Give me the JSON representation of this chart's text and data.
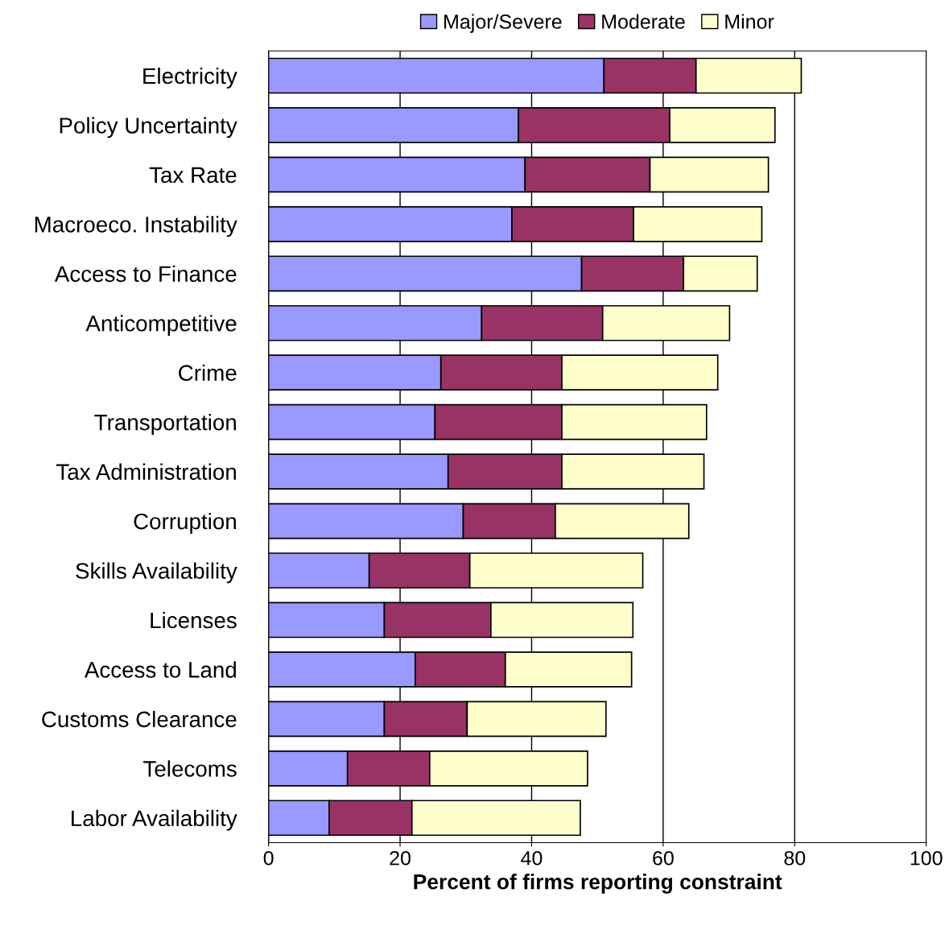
{
  "chart_data": {
    "type": "bar",
    "orientation": "horizontal",
    "stacked": true,
    "xlabel": "Percent of firms reporting constraint",
    "categories": [
      "Electricity",
      "Policy Uncertainty",
      "Tax Rate",
      "Macroeco. Instability",
      "Access to Finance",
      "Anticompetitive",
      "Crime",
      "Transportation",
      "Tax Administration",
      "Corruption",
      "Skills Availability",
      "Licenses",
      "Access to Land",
      "Customs Clearance",
      "Telecoms",
      "Labor Availability"
    ],
    "series": [
      {
        "name": "Major/Severe",
        "color": "#9999ff",
        "values": [
          51,
          38,
          39,
          37,
          47.6,
          32.4,
          26.2,
          25.3,
          27.3,
          29.6,
          15.3,
          17.6,
          22.3,
          17.6,
          12,
          9.2
        ]
      },
      {
        "name": "Moderate",
        "color": "#993366",
        "values": [
          14,
          23,
          19,
          18.5,
          15.5,
          18.4,
          18.4,
          19.3,
          17.3,
          14,
          15.3,
          16.2,
          13.7,
          12.6,
          12.5,
          12.6
        ]
      },
      {
        "name": "Minor",
        "color": "#ffffcc",
        "values": [
          16,
          16,
          18,
          19.5,
          11.2,
          19.3,
          23.7,
          22,
          21.6,
          20.3,
          26.3,
          21.6,
          19.2,
          21.1,
          24,
          25.6
        ]
      }
    ],
    "xlim": [
      0,
      100
    ],
    "xticks": [
      0,
      20,
      40,
      60,
      80,
      100
    ],
    "grid": "x",
    "legend": "top"
  }
}
